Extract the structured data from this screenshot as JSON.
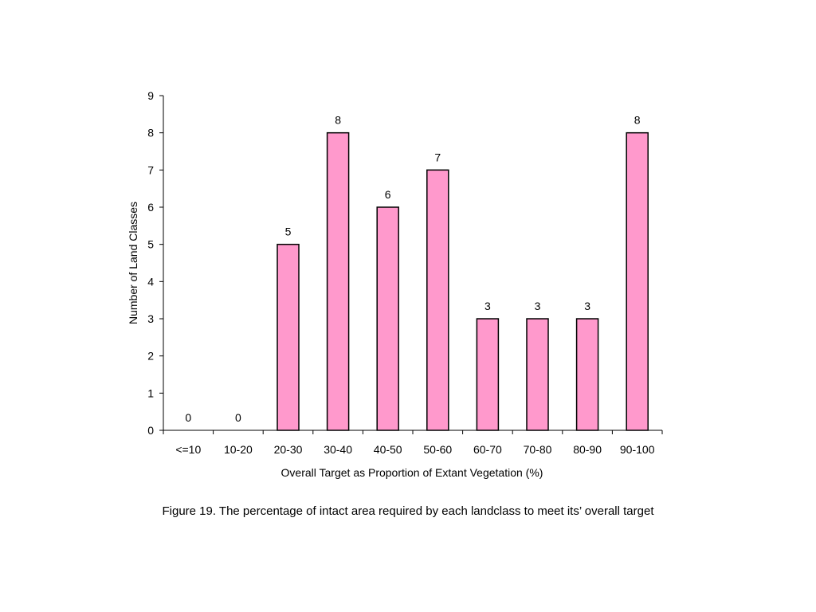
{
  "chart_data": {
    "type": "bar",
    "categories": [
      "<=10",
      "10-20",
      "20-30",
      "30-40",
      "40-50",
      "50-60",
      "60-70",
      "70-80",
      "80-90",
      "90-100"
    ],
    "values": [
      0,
      0,
      5,
      8,
      6,
      7,
      3,
      3,
      3,
      8
    ],
    "data_labels": [
      "0",
      "0",
      "5",
      "8",
      "6",
      "7",
      "3",
      "3",
      "3",
      "8"
    ],
    "xlabel": "Overall Target as Proportion of Extant Vegetation (%)",
    "ylabel": "Number of Land Classes",
    "ylim": [
      0,
      9
    ],
    "yticks": [
      "0",
      "1",
      "2",
      "3",
      "4",
      "5",
      "6",
      "7",
      "8",
      "9"
    ],
    "bar_color": "#ff99cc",
    "bar_outline": "#000000",
    "grid": false,
    "legend": "none"
  },
  "caption": "Figure 19. The percentage of intact area required by each landclass to meet its’ overall target"
}
